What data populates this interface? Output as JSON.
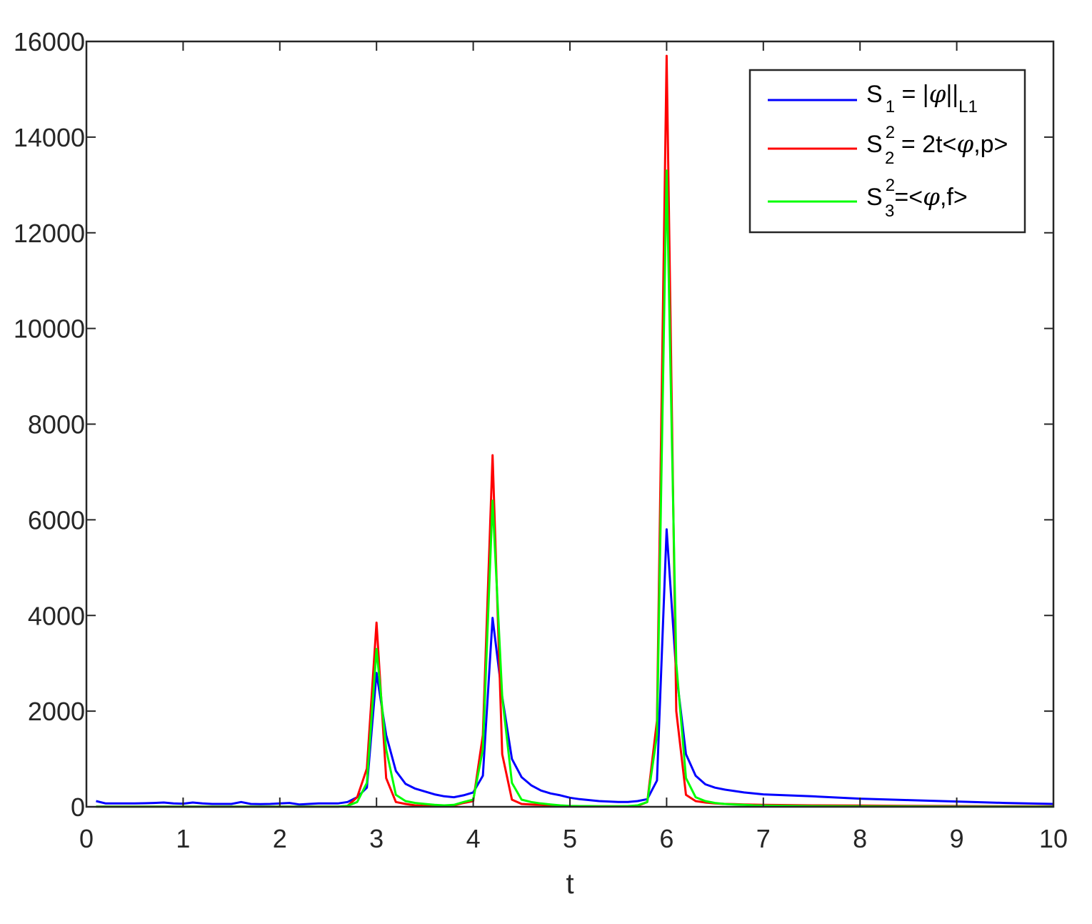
{
  "chart_data": {
    "type": "line",
    "xlabel": "t",
    "ylabel": "",
    "xlim": [
      0,
      10
    ],
    "ylim": [
      0,
      16000
    ],
    "xticks": [
      "0",
      "1",
      "2",
      "3",
      "4",
      "5",
      "6",
      "7",
      "8",
      "9",
      "10"
    ],
    "yticks": [
      "0",
      "2000",
      "4000",
      "6000",
      "8000",
      "10000",
      "12000",
      "14000",
      "16000"
    ],
    "grid": false,
    "legend_position": "top-right",
    "colors": {
      "s1": "#0000ff",
      "s2": "#ff0000",
      "s3": "#00ff00"
    },
    "legend": {
      "s1": {
        "S": "S",
        "sub": "1",
        "sup": "",
        "text": " = |",
        "phi": "φ",
        "tail": "||",
        "tail_sub": "L1"
      },
      "s2": {
        "S": "S",
        "sub": "2",
        "sup": "2",
        "text": " = 2t<",
        "phi": "φ",
        "tail": ",p>",
        "tail_sub": ""
      },
      "s3": {
        "S": "S",
        "sub": "3",
        "sup": "2",
        "text": "=<",
        "phi": "φ",
        "tail": ",f>",
        "tail_sub": ""
      }
    },
    "x": [
      0.1,
      0.2,
      0.3,
      0.4,
      0.5,
      0.6,
      0.7,
      0.8,
      0.9,
      1.0,
      1.1,
      1.2,
      1.3,
      1.4,
      1.5,
      1.6,
      1.7,
      1.8,
      1.9,
      2.0,
      2.1,
      2.2,
      2.3,
      2.4,
      2.5,
      2.6,
      2.7,
      2.8,
      2.9,
      3.0,
      3.1,
      3.2,
      3.3,
      3.4,
      3.5,
      3.6,
      3.7,
      3.8,
      3.9,
      4.0,
      4.1,
      4.2,
      4.3,
      4.4,
      4.5,
      4.6,
      4.7,
      4.8,
      4.9,
      5.0,
      5.1,
      5.2,
      5.3,
      5.4,
      5.5,
      5.6,
      5.7,
      5.8,
      5.9,
      6.0,
      6.1,
      6.2,
      6.3,
      6.4,
      6.5,
      6.6,
      6.7,
      6.8,
      6.9,
      7.0,
      7.5,
      8.0,
      8.5,
      9.0,
      9.5,
      10.0
    ],
    "series": [
      {
        "key": "s1",
        "values": [
          120,
          70,
          70,
          70,
          70,
          75,
          80,
          90,
          70,
          65,
          90,
          70,
          60,
          60,
          60,
          100,
          60,
          55,
          60,
          70,
          80,
          50,
          60,
          70,
          70,
          70,
          100,
          200,
          400,
          2800,
          1500,
          750,
          480,
          380,
          320,
          260,
          220,
          200,
          240,
          300,
          650,
          3950,
          2300,
          1000,
          620,
          450,
          340,
          280,
          240,
          190,
          160,
          140,
          120,
          110,
          100,
          100,
          120,
          160,
          550,
          5800,
          2800,
          1100,
          650,
          470,
          400,
          360,
          330,
          300,
          280,
          260,
          220,
          170,
          140,
          110,
          80,
          60
        ]
      },
      {
        "key": "s2",
        "values": [
          5,
          5,
          5,
          5,
          5,
          5,
          5,
          5,
          5,
          5,
          5,
          5,
          5,
          5,
          5,
          5,
          5,
          5,
          5,
          5,
          5,
          5,
          5,
          5,
          5,
          5,
          20,
          200,
          800,
          3850,
          600,
          100,
          60,
          30,
          20,
          15,
          10,
          30,
          80,
          120,
          1500,
          7350,
          1100,
          150,
          60,
          50,
          40,
          30,
          20,
          15,
          10,
          10,
          10,
          10,
          10,
          10,
          20,
          100,
          1800,
          15700,
          2000,
          250,
          120,
          90,
          70,
          60,
          55,
          50,
          45,
          40,
          30,
          25,
          20,
          15,
          10,
          10
        ]
      },
      {
        "key": "s3",
        "values": [
          5,
          5,
          5,
          5,
          5,
          5,
          5,
          5,
          5,
          5,
          5,
          5,
          5,
          5,
          5,
          5,
          5,
          5,
          5,
          5,
          5,
          5,
          5,
          5,
          5,
          5,
          20,
          100,
          500,
          3300,
          1200,
          250,
          120,
          80,
          60,
          40,
          30,
          40,
          100,
          150,
          1200,
          6400,
          2300,
          500,
          150,
          100,
          70,
          50,
          30,
          20,
          15,
          15,
          10,
          10,
          10,
          15,
          30,
          100,
          1500,
          13300,
          3000,
          600,
          200,
          120,
          80,
          60,
          50,
          40,
          30,
          25,
          15,
          10,
          8,
          5,
          5,
          5
        ]
      }
    ]
  }
}
